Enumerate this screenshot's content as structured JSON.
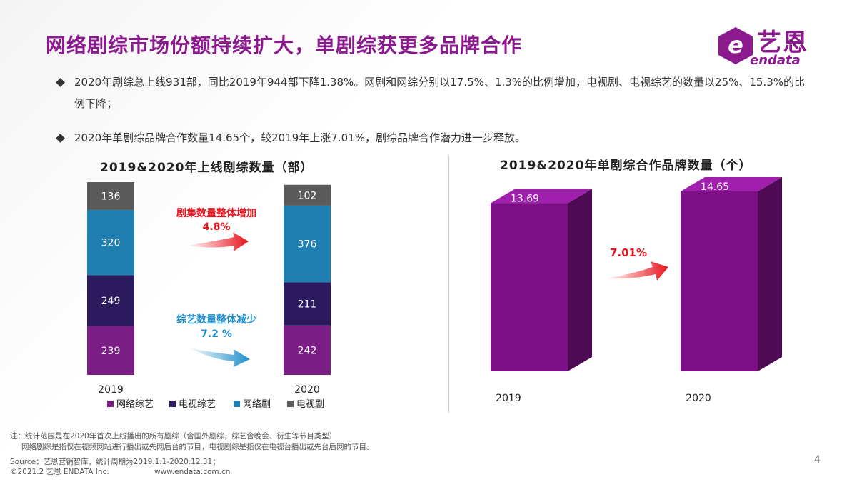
{
  "title": "网络剧综市场份额持续扩大，单剧综获更多品牌合作",
  "logo": {
    "cn": "艺恩",
    "en": "endata",
    "letter": "e"
  },
  "bullets": [
    "2020年剧综总上线931部，同比2019年944部下降1.38%。网剧和网综分别以17.5%、1.3%的比例增加，电视剧、电视综艺的数量以25%、15.3%的比例下降；",
    "2020年单剧综品牌合作数量14.65个，较2019年上涨7.01%，剧综品牌合作潜力进一步释放。"
  ],
  "colors": {
    "title": "#8a1a8e",
    "web_variety": "#7a1e86",
    "tv_variety": "#2b1a5e",
    "web_drama": "#1f7fb1",
    "tv_drama": "#5a5a5a",
    "bar3d_front": "#7d0f86",
    "bar3d_side": "#4e0a55",
    "bar3d_top": "#a020ad",
    "increase": "#e8141e",
    "decrease": "#1f8ec9"
  },
  "chart_data": [
    {
      "type": "bar",
      "stacked": true,
      "title": "2019&2020年上线剧综数量（部）",
      "categories": [
        "2019",
        "2020"
      ],
      "series": [
        {
          "name": "网络综艺",
          "values": [
            239,
            242
          ],
          "color_key": "web_variety"
        },
        {
          "name": "电视综艺",
          "values": [
            249,
            211
          ],
          "color_key": "tv_variety"
        },
        {
          "name": "网络剧",
          "values": [
            320,
            376
          ],
          "color_key": "web_drama"
        },
        {
          "name": "电视剧",
          "values": [
            136,
            102
          ],
          "color_key": "tv_drama"
        }
      ],
      "legend_position": "bottom",
      "annotations": [
        {
          "text": "剧集数量整体增加",
          "value": "4.8%",
          "direction": "up",
          "color_key": "increase"
        },
        {
          "text": "综艺数量整体减少",
          "value": "7.2 %",
          "direction": "down",
          "color_key": "decrease"
        }
      ]
    },
    {
      "type": "bar",
      "style": "3d",
      "title": "2019&2020年单剧综合作品牌数量（个）",
      "categories": [
        "2019",
        "2020"
      ],
      "values": [
        13.69,
        14.65
      ],
      "annotations": [
        {
          "text": "7.01%",
          "direction": "up",
          "color_key": "increase"
        }
      ]
    }
  ],
  "footnotes": {
    "note1": "注：统计范围是在2020年首次上线播出的所有剧综（含国外剧综，综艺含晚会、衍生等节目类型）",
    "note2": "网络剧综是指仅在视频网站进行播出或先网后台的节目，电视剧综是指仅在电视台播出或先台后网的节目。",
    "source": "Source：艺恩营销智库，统计周期为2019.1.1-2020.12.31；",
    "copyright": "©2021.2 艺恩 ENDATA Inc.",
    "website": "www.endata.com.cn"
  },
  "page_number": "4"
}
